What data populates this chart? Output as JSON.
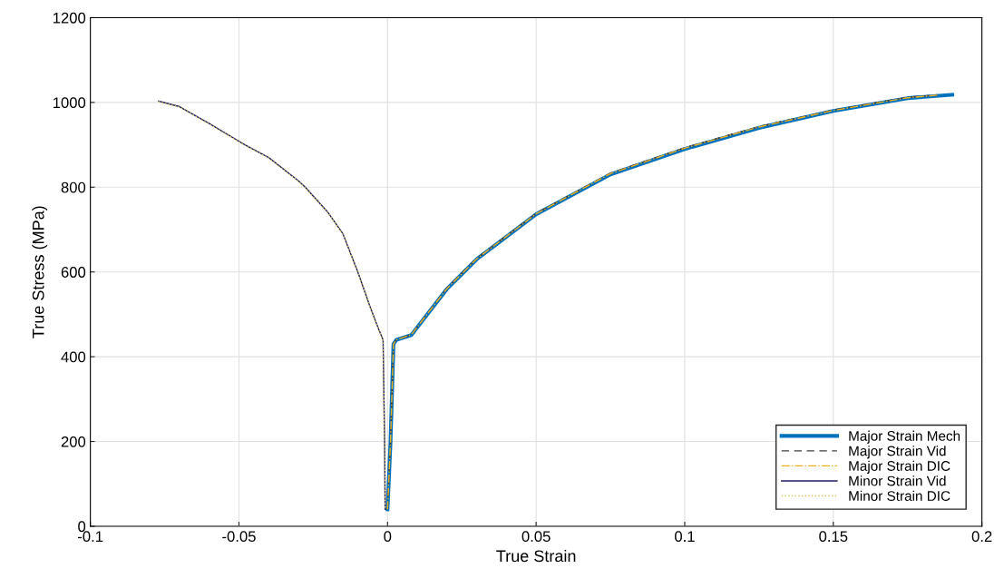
{
  "chart_data": {
    "type": "line",
    "xlabel": "True Strain",
    "ylabel": "True Stress (MPa)",
    "xlim": [
      -0.1,
      0.2
    ],
    "xticks": [
      {
        "value": -0.1,
        "label": "-0.1"
      },
      {
        "value": -0.05,
        "label": "-0.05"
      },
      0,
      0.05,
      0.1,
      0.15,
      0.2
    ],
    "ylim": [
      0,
      1200
    ],
    "yticks": [
      0,
      200,
      400,
      600,
      800,
      1000,
      1200
    ],
    "grid": true,
    "legend": "bottom right",
    "series": [
      {
        "name": "Major Strain Mech",
        "color": "#0072bd",
        "line_style": "solid",
        "x": [
          0.0,
          0.001,
          0.002,
          0.003,
          0.008,
          0.02,
          0.03,
          0.05,
          0.075,
          0.1,
          0.125,
          0.15,
          0.175,
          0.19
        ],
        "values": [
          40,
          200,
          430,
          440,
          451,
          560,
          630,
          736,
          830,
          890,
          940,
          980,
          1010,
          1018
        ]
      },
      {
        "name": "Major Strain Vid",
        "color": "#404040",
        "line_style": "dashed",
        "x": [
          0.0,
          0.001,
          0.002,
          0.003,
          0.008,
          0.02,
          0.03,
          0.05,
          0.075,
          0.1,
          0.125,
          0.15,
          0.175,
          0.185
        ],
        "values": [
          40,
          200,
          430,
          440,
          452,
          562,
          632,
          738,
          833,
          893,
          943,
          982,
          1012,
          1018
        ]
      },
      {
        "name": "Major Strain DIC",
        "color": "#edb120",
        "line_style": "dashdot",
        "x": [
          0.0,
          0.001,
          0.002,
          0.003,
          0.008,
          0.02,
          0.03,
          0.05,
          0.075,
          0.1,
          0.125,
          0.15,
          0.175,
          0.185
        ],
        "values": [
          40,
          200,
          430,
          440,
          452,
          561,
          631,
          737,
          832,
          892,
          942,
          981,
          1011,
          1017
        ]
      },
      {
        "name": "Minor Strain Vid",
        "color": "#1f1f5f",
        "line_style": "solid",
        "x": [
          -0.077,
          -0.07,
          -0.06,
          -0.048,
          -0.04,
          -0.03,
          -0.0277,
          -0.02,
          -0.015,
          -0.01,
          -0.006,
          -0.003,
          -0.0015,
          -0.001,
          -0.0008
        ],
        "values": [
          1003,
          990,
          950,
          900,
          870,
          815,
          800,
          740,
          690,
          600,
          520,
          465,
          440,
          200,
          40
        ]
      },
      {
        "name": "Minor Strain DIC",
        "color": "#d9c35a",
        "line_style": "dotted",
        "x": [
          -0.077,
          -0.07,
          -0.06,
          -0.048,
          -0.04,
          -0.03,
          -0.0277,
          -0.02,
          -0.015,
          -0.01,
          -0.006,
          -0.003,
          -0.0015,
          -0.001,
          -0.0008
        ],
        "values": [
          1002,
          989,
          949,
          899,
          869,
          814,
          799,
          739,
          689,
          599,
          519,
          464,
          439,
          199,
          40
        ]
      }
    ]
  }
}
